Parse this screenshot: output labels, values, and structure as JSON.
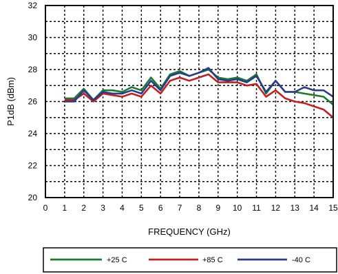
{
  "chart_data": {
    "type": "line",
    "title": "",
    "xlabel": "FREQUENCY (GHz)",
    "ylabel": "P1dB (dBm)",
    "xlim": [
      0,
      15
    ],
    "ylim": [
      20,
      32
    ],
    "x_ticks": [
      "0",
      "1",
      "2",
      "3",
      "4",
      "5",
      "6",
      "7",
      "8",
      "9",
      "10",
      "11",
      "12",
      "13",
      "14",
      "15"
    ],
    "y_ticks": [
      "20",
      "22",
      "24",
      "26",
      "28",
      "30",
      "32"
    ],
    "grid": true,
    "legend_position": "bottom",
    "series": [
      {
        "name": "+25 C",
        "color": "#1a7a2e",
        "points": [
          [
            1,
            26.2
          ],
          [
            1.5,
            26.2
          ],
          [
            2,
            26.8
          ],
          [
            2.5,
            26.1
          ],
          [
            3,
            26.7
          ],
          [
            3.5,
            26.7
          ],
          [
            4,
            26.6
          ],
          [
            4.5,
            26.9
          ],
          [
            5,
            26.7
          ],
          [
            5.5,
            27.5
          ],
          [
            6,
            26.8
          ],
          [
            6.5,
            27.7
          ],
          [
            7,
            27.9
          ],
          [
            7.5,
            27.6
          ],
          [
            8,
            27.8
          ],
          [
            8.5,
            28.0
          ],
          [
            9,
            27.5
          ],
          [
            9.5,
            27.4
          ],
          [
            10,
            27.5
          ],
          [
            10.5,
            27.3
          ],
          [
            11,
            27.7
          ],
          [
            11.5,
            26.5
          ],
          [
            12,
            27.3
          ],
          [
            12.5,
            26.6
          ],
          [
            13,
            26.6
          ],
          [
            13.5,
            26.5
          ],
          [
            14,
            26.4
          ],
          [
            14.5,
            26.3
          ],
          [
            15,
            25.8
          ]
        ]
      },
      {
        "name": "+85 C",
        "color": "#c02020",
        "points": [
          [
            1,
            26.1
          ],
          [
            1.5,
            26.1
          ],
          [
            2,
            26.5
          ],
          [
            2.5,
            26.0
          ],
          [
            3,
            26.5
          ],
          [
            3.5,
            26.4
          ],
          [
            4,
            26.3
          ],
          [
            4.5,
            26.5
          ],
          [
            5,
            26.3
          ],
          [
            5.5,
            27.0
          ],
          [
            6,
            26.5
          ],
          [
            6.5,
            27.3
          ],
          [
            7,
            27.5
          ],
          [
            7.5,
            27.3
          ],
          [
            8,
            27.5
          ],
          [
            8.5,
            27.7
          ],
          [
            9,
            27.2
          ],
          [
            9.5,
            27.2
          ],
          [
            10,
            27.2
          ],
          [
            10.5,
            27.0
          ],
          [
            11,
            27.1
          ],
          [
            11.5,
            26.3
          ],
          [
            12,
            26.7
          ],
          [
            12.5,
            26.2
          ],
          [
            13,
            26.0
          ],
          [
            13.5,
            25.9
          ],
          [
            14,
            25.7
          ],
          [
            14.5,
            25.5
          ],
          [
            15,
            25.0
          ]
        ]
      },
      {
        "name": "-40 C",
        "color": "#2a3a8c",
        "points": [
          [
            1,
            26.0
          ],
          [
            1.5,
            26.0
          ],
          [
            2,
            26.7
          ],
          [
            2.5,
            26.1
          ],
          [
            3,
            26.6
          ],
          [
            3.5,
            26.5
          ],
          [
            4,
            26.5
          ],
          [
            4.5,
            26.7
          ],
          [
            5,
            26.5
          ],
          [
            5.5,
            27.3
          ],
          [
            6,
            26.7
          ],
          [
            6.5,
            27.6
          ],
          [
            7,
            27.8
          ],
          [
            7.5,
            27.6
          ],
          [
            8,
            27.8
          ],
          [
            8.5,
            28.1
          ],
          [
            9,
            27.4
          ],
          [
            9.5,
            27.3
          ],
          [
            10,
            27.4
          ],
          [
            10.5,
            27.2
          ],
          [
            11,
            27.6
          ],
          [
            11.5,
            26.6
          ],
          [
            12,
            27.3
          ],
          [
            12.5,
            26.6
          ],
          [
            13,
            26.6
          ],
          [
            13.5,
            26.9
          ],
          [
            14,
            26.7
          ],
          [
            14.5,
            26.7
          ],
          [
            15,
            26.3
          ]
        ]
      }
    ]
  }
}
